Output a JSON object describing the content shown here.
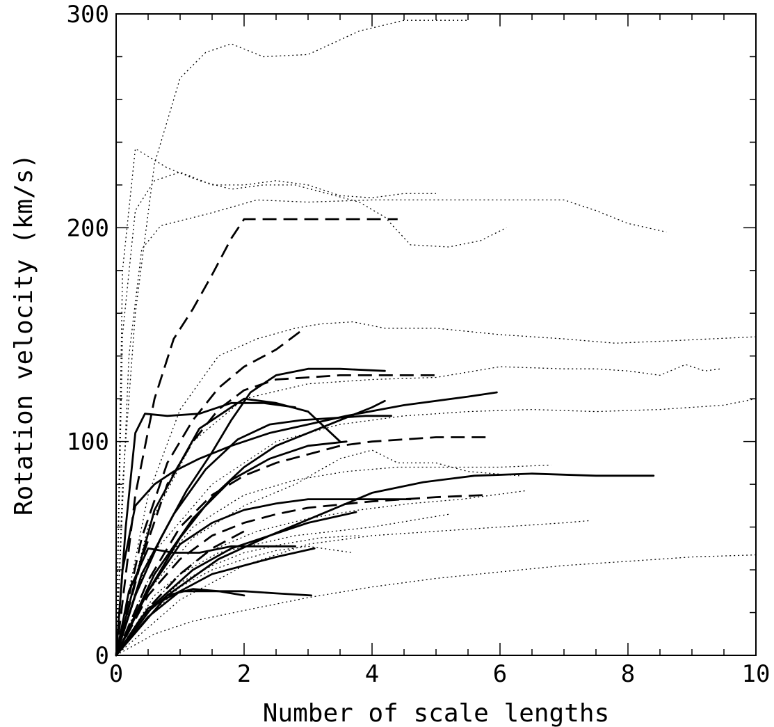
{
  "chart_data": {
    "type": "line",
    "title": "",
    "xlabel": "Number of scale lengths",
    "ylabel": "Rotation velocity (km/s)",
    "xlim": [
      0,
      10
    ],
    "ylim": [
      0,
      300
    ],
    "x_major_ticks": [
      0,
      2,
      4,
      6,
      8,
      10
    ],
    "x_tick_labels": [
      "0",
      "2",
      "4",
      "6",
      "8",
      "10"
    ],
    "x_minor_step": 0.5,
    "y_major_ticks": [
      0,
      100,
      200,
      300
    ],
    "y_tick_labels": [
      "0",
      "100",
      "200",
      "300"
    ],
    "y_minor_step": 20,
    "grid": false,
    "legend": "none",
    "series": [
      {
        "style": "solid",
        "x": [
          0,
          0.15,
          0.3,
          0.45,
          0.8,
          1.3,
          1.8,
          2.3,
          2.8
        ],
        "y": [
          0,
          60,
          104,
          113,
          112,
          113,
          118,
          118,
          116
        ]
      },
      {
        "style": "solid",
        "x": [
          0,
          0.3,
          0.7,
          1.1,
          1.5,
          1.8,
          2.1,
          2.5,
          3.0,
          3.5,
          4.2
        ],
        "y": [
          0,
          28,
          55,
          77,
          95,
          110,
          123,
          131,
          134,
          134,
          133
        ]
      },
      {
        "style": "solid",
        "x": [
          0,
          0.3,
          0.6,
          1.0,
          1.3,
          1.7,
          2.0,
          2.5,
          3.0,
          3.5
        ],
        "y": [
          0,
          35,
          68,
          90,
          106,
          114,
          120,
          118,
          114,
          100
        ]
      },
      {
        "style": "solid",
        "x": [
          0,
          0.4,
          0.9,
          1.4,
          1.9,
          2.4,
          2.9,
          3.4,
          3.9,
          4.3
        ],
        "y": [
          0,
          38,
          66,
          87,
          101,
          108,
          110,
          111,
          112,
          112
        ]
      },
      {
        "style": "solid",
        "x": [
          0,
          0.5,
          1.0,
          1.5,
          2.0,
          2.5,
          3.0,
          3.5,
          4.0,
          4.2
        ],
        "y": [
          0,
          30,
          55,
          74,
          88,
          98,
          104,
          110,
          116,
          119
        ]
      },
      {
        "style": "solid",
        "x": [
          0,
          0.1,
          0.3,
          0.6,
          0.9,
          1.3,
          1.8,
          2.4,
          3.0,
          3.6,
          4.5,
          5.5,
          5.95
        ],
        "y": [
          0,
          40,
          70,
          80,
          86,
          92,
          98,
          104,
          108,
          112,
          117,
          121,
          123
        ]
      },
      {
        "style": "solid",
        "x": [
          0,
          0.6,
          1.2,
          1.8,
          2.4,
          3.0,
          3.6
        ],
        "y": [
          0,
          38,
          64,
          82,
          92,
          98,
          100
        ]
      },
      {
        "style": "solid",
        "x": [
          0,
          0.8,
          1.6,
          2.4,
          3.2,
          4.0,
          4.8,
          5.6,
          6.5,
          7.5,
          8.4
        ],
        "y": [
          0,
          28,
          45,
          56,
          66,
          76,
          81,
          84,
          85,
          84,
          84
        ]
      },
      {
        "style": "solid",
        "x": [
          0,
          0.5,
          1.0,
          1.5,
          2.0,
          2.5,
          3.0,
          3.5,
          4.0,
          4.6
        ],
        "y": [
          0,
          30,
          52,
          62,
          68,
          71,
          73,
          73,
          73,
          73
        ]
      },
      {
        "style": "solid",
        "x": [
          0,
          0.6,
          1.2,
          1.8,
          2.4,
          3.0,
          3.75
        ],
        "y": [
          0,
          24,
          40,
          50,
          56,
          62,
          67
        ]
      },
      {
        "style": "solid",
        "x": [
          0,
          0.2,
          0.5,
          0.9,
          1.3,
          1.8,
          2.3,
          2.8
        ],
        "y": [
          0,
          30,
          50,
          48,
          48,
          51,
          51,
          51
        ]
      },
      {
        "style": "solid",
        "x": [
          0,
          0.5,
          1.0,
          1.5,
          2.0,
          2.5,
          3.1
        ],
        "y": [
          0,
          18,
          30,
          38,
          42,
          46,
          50
        ]
      },
      {
        "style": "solid",
        "x": [
          0,
          0.5,
          1.0,
          1.5,
          2.0,
          2.5,
          3.05
        ],
        "y": [
          0,
          22,
          30,
          30,
          30,
          29,
          28
        ]
      },
      {
        "style": "solid",
        "x": [
          0,
          0.4,
          0.8,
          1.2,
          1.6,
          2.0
        ],
        "y": [
          0,
          18,
          28,
          31,
          30,
          28
        ]
      },
      {
        "style": "dashed",
        "x": [
          0,
          0.3,
          0.6,
          0.9,
          1.2,
          1.5,
          1.8,
          2.0,
          2.5,
          3.0,
          3.5,
          4.0,
          4.4
        ],
        "y": [
          0,
          75,
          120,
          148,
          162,
          178,
          195,
          204,
          204,
          204,
          204,
          204,
          204
        ]
      },
      {
        "style": "dashed",
        "x": [
          0,
          0.4,
          0.8,
          1.2,
          1.6,
          2.0,
          2.5,
          2.9
        ],
        "y": [
          0,
          55,
          90,
          110,
          125,
          135,
          143,
          152
        ]
      },
      {
        "style": "dashed",
        "x": [
          0,
          0.4,
          0.8,
          1.2,
          1.6,
          2.0,
          2.5,
          3.0,
          3.5,
          4.0,
          5.0
        ],
        "y": [
          0,
          45,
          80,
          100,
          115,
          124,
          129,
          130,
          131,
          131,
          131
        ]
      },
      {
        "style": "dashed",
        "x": [
          0,
          0.5,
          1.0,
          1.5,
          2.0,
          2.5,
          3.0,
          3.5,
          4.0,
          5.0,
          5.8
        ],
        "y": [
          0,
          35,
          60,
          75,
          84,
          90,
          94,
          98,
          100,
          102,
          102
        ]
      },
      {
        "style": "dashed",
        "x": [
          0,
          0.5,
          1.0,
          1.5,
          2.0,
          2.5,
          3.0,
          4.0,
          5.0,
          5.8
        ],
        "y": [
          0,
          28,
          45,
          56,
          62,
          66,
          69,
          72,
          74,
          75
        ]
      },
      {
        "style": "dashed",
        "x": [
          0,
          0.5,
          1.0,
          1.5,
          2.0
        ],
        "y": [
          0,
          22,
          38,
          50,
          58
        ]
      },
      {
        "style": "dotted",
        "x": [
          0,
          0.1,
          0.3,
          0.6,
          1.0,
          1.4,
          1.8,
          2.3,
          3.0,
          3.8,
          4.5,
          5.5
        ],
        "y": [
          0,
          80,
          160,
          230,
          270,
          282,
          286,
          280,
          281,
          292,
          297,
          297
        ]
      },
      {
        "style": "dotted",
        "x": [
          0,
          0.1,
          0.3,
          0.8,
          1.3,
          1.8,
          2.3,
          2.8,
          3.3,
          3.8,
          4.2,
          4.6,
          5.2,
          5.7,
          6.1
        ],
        "y": [
          0,
          180,
          237,
          228,
          222,
          218,
          220,
          220,
          216,
          212,
          205,
          192,
          191,
          194,
          200
        ]
      },
      {
        "style": "dotted",
        "x": [
          0,
          0.1,
          0.3,
          0.6,
          1.0,
          1.5,
          2.0,
          2.5,
          3.0,
          3.5,
          4.0,
          4.5,
          5.0
        ],
        "y": [
          0,
          150,
          208,
          222,
          226,
          220,
          220,
          222,
          220,
          215,
          214,
          216,
          216
        ]
      },
      {
        "style": "dotted",
        "x": [
          0,
          0.2,
          0.4,
          0.7,
          1.5,
          2.2,
          3.0,
          4.0,
          5.0,
          6.0,
          7.0,
          7.5,
          8.0,
          8.6
        ],
        "y": [
          0,
          140,
          190,
          201,
          207,
          213,
          212,
          213,
          213,
          213,
          213,
          208,
          202,
          198
        ]
      },
      {
        "style": "dotted",
        "x": [
          0,
          0.5,
          1.0,
          1.6,
          2.2,
          2.8,
          3.2,
          3.7,
          4.2,
          5.0,
          6.0,
          7.0,
          7.8,
          8.6,
          9.3,
          10.0
        ],
        "y": [
          0,
          75,
          115,
          140,
          148,
          153,
          155,
          156,
          153,
          153,
          150,
          148,
          146,
          147,
          148,
          149
        ]
      },
      {
        "style": "dotted",
        "x": [
          0,
          0.5,
          1.2,
          2.0,
          3.0,
          4.0,
          5.0,
          6.0,
          7.0,
          7.5,
          8.0,
          8.5,
          8.9,
          9.2,
          9.45
        ],
        "y": [
          0,
          60,
          100,
          120,
          127,
          129,
          130,
          135,
          134,
          134,
          133,
          131,
          136,
          133,
          134
        ]
      },
      {
        "style": "dotted",
        "x": [
          0,
          0.5,
          1.5,
          2.5,
          3.5,
          4.5,
          5.5,
          6.5,
          7.5,
          8.5,
          9.5,
          10.0
        ],
        "y": [
          0,
          45,
          80,
          100,
          108,
          112,
          114,
          115,
          114,
          115,
          117,
          120
        ]
      },
      {
        "style": "dotted",
        "x": [
          0,
          0.5,
          1.2,
          2.0,
          2.8,
          3.6,
          4.4,
          5.2,
          6.0,
          6.8
        ],
        "y": [
          0,
          35,
          60,
          75,
          82,
          86,
          88,
          88,
          88,
          89
        ]
      },
      {
        "style": "dotted",
        "x": [
          0,
          0.5,
          1.2,
          2.0,
          2.8,
          3.5,
          4.0,
          4.4,
          5.0,
          5.5,
          6.3
        ],
        "y": [
          0,
          30,
          55,
          70,
          80,
          92,
          96,
          90,
          90,
          86,
          84
        ]
      },
      {
        "style": "dotted",
        "x": [
          0,
          0.6,
          1.4,
          2.2,
          3.0,
          3.8,
          4.6,
          5.4,
          6.4
        ],
        "y": [
          0,
          28,
          48,
          58,
          64,
          68,
          71,
          73,
          77
        ]
      },
      {
        "style": "dotted",
        "x": [
          0,
          0.5,
          1.0,
          1.6,
          2.2,
          2.8,
          3.4,
          4.0,
          4.6,
          5.2
        ],
        "y": [
          0,
          22,
          38,
          48,
          52,
          56,
          58,
          60,
          63,
          66
        ]
      },
      {
        "style": "dotted",
        "x": [
          0,
          1.0,
          2.0,
          3.0,
          4.0,
          5.0,
          6.0,
          7.0,
          7.4
        ],
        "y": [
          0,
          26,
          42,
          52,
          56,
          58,
          60,
          62,
          63
        ]
      },
      {
        "style": "dotted",
        "x": [
          0,
          0.5,
          1.0,
          1.5,
          2.0,
          2.5,
          3.0,
          3.7
        ],
        "y": [
          0,
          18,
          32,
          40,
          45,
          49,
          51,
          48
        ]
      },
      {
        "style": "dotted",
        "x": [
          0,
          0.5,
          1.0,
          1.5,
          2.0,
          2.6,
          3.2,
          3.8
        ],
        "y": [
          0,
          20,
          34,
          42,
          48,
          52,
          55,
          56
        ]
      },
      {
        "style": "dotted",
        "x": [
          0,
          0.6,
          1.2,
          2.0,
          3.0,
          4.0,
          5.0,
          6.0,
          7.0,
          8.0,
          9.0,
          10.0
        ],
        "y": [
          0,
          10,
          16,
          21,
          27,
          32,
          36,
          39,
          42,
          44,
          46,
          47
        ]
      }
    ]
  }
}
